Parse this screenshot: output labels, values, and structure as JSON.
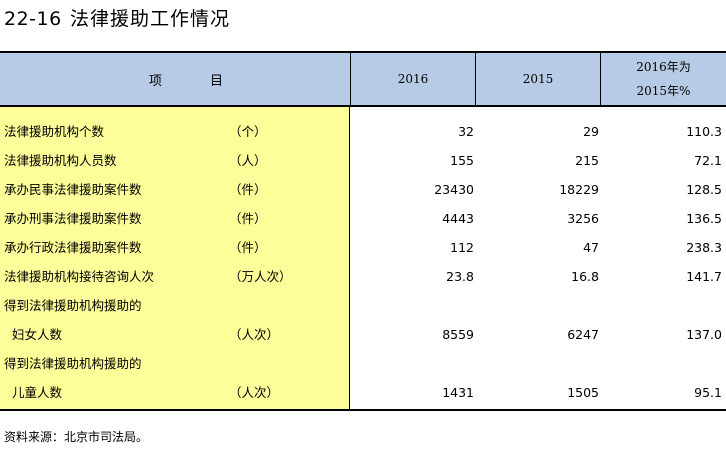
{
  "title": {
    "number": "22-16",
    "text": "法律援助工作情况"
  },
  "header": {
    "items_label": "项  目",
    "col_2016": "2016",
    "col_2015": "2015",
    "col_pct_line1": "2016年为",
    "col_pct_line2": "2015年%"
  },
  "rows": [
    {
      "name": "法律援助机构个数",
      "unit": "（个）",
      "v2016": "32",
      "v2015": "29",
      "pct": "110.3"
    },
    {
      "name": "法律援助机构人员数",
      "unit": "（人）",
      "v2016": "155",
      "v2015": "215",
      "pct": "72.1"
    },
    {
      "name": "承办民事法律援助案件数",
      "unit": "（件）",
      "v2016": "23430",
      "v2015": "18229",
      "pct": "128.5"
    },
    {
      "name": "承办刑事法律援助案件数",
      "unit": "（件）",
      "v2016": "4443",
      "v2015": "3256",
      "pct": "136.5"
    },
    {
      "name": "承办行政法律援助案件数",
      "unit": "（件）",
      "v2016": "112",
      "v2015": "47",
      "pct": "238.3"
    },
    {
      "name": "法律援助机构接待咨询人次",
      "unit": "（万人次）",
      "v2016": "23.8",
      "v2015": "16.8",
      "pct": "141.7"
    },
    {
      "name": "得到法律援助机构援助的",
      "unit": "",
      "v2016": "",
      "v2015": "",
      "pct": ""
    },
    {
      "name": "妇女人数",
      "unit": "（人次）",
      "v2016": "8559",
      "v2015": "6247",
      "pct": "137.0"
    },
    {
      "name": "得到法律援助机构援助的",
      "unit": "",
      "v2016": "",
      "v2015": "",
      "pct": ""
    },
    {
      "name": "儿童人数",
      "unit": "（人次）",
      "v2016": "1431",
      "v2015": "1505",
      "pct": "95.1"
    }
  ],
  "source": "资料来源：北京市司法局。",
  "colors": {
    "header_bg": "#b7cbe6",
    "label_bg": "#fdfd99"
  }
}
